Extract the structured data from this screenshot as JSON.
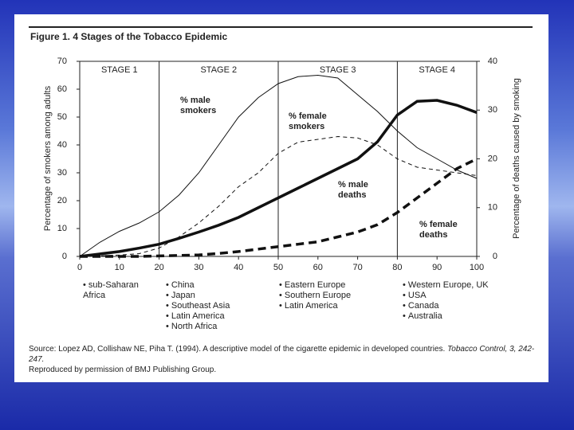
{
  "chart_data": {
    "type": "line",
    "title": "Figure 1. 4 Stages of the Tobacco Epidemic",
    "y_label": "Percentage of smokers among adults",
    "y2_label": "Percentage of deaths caused by smoking",
    "x": [
      0,
      5,
      10,
      15,
      20,
      25,
      30,
      35,
      40,
      45,
      50,
      55,
      60,
      65,
      70,
      75,
      80,
      85,
      90,
      95,
      100
    ],
    "xlim": [
      0,
      100
    ],
    "xticks": [
      0,
      10,
      20,
      30,
      40,
      50,
      60,
      70,
      80,
      90,
      100
    ],
    "ylim": [
      0,
      70
    ],
    "yticks": [
      0,
      10,
      20,
      30,
      40,
      50,
      60,
      70
    ],
    "y2lim": [
      0,
      40
    ],
    "y2ticks": [
      0,
      10,
      20,
      30,
      40
    ],
    "stages": [
      "STAGE 1",
      "STAGE 2",
      "STAGE 3",
      "STAGE 4"
    ],
    "stage_bounds": [
      20,
      50,
      80
    ],
    "series": [
      {
        "name": "% male smokers",
        "color": "#111111",
        "style": "solid",
        "width": 1,
        "values": [
          0,
          5,
          9,
          12,
          16,
          22,
          30,
          40,
          50,
          57,
          62,
          64.5,
          65,
          64,
          58,
          52,
          45,
          39,
          35,
          31,
          28
        ]
      },
      {
        "name": "% female smokers",
        "color": "#111111",
        "style": "dashed",
        "width": 1,
        "values": [
          0,
          0.2,
          0.5,
          1,
          3,
          7,
          12,
          18,
          25,
          30,
          37,
          41,
          42,
          43,
          42.5,
          40,
          35,
          32,
          31,
          30,
          29
        ]
      },
      {
        "name": "% male deaths",
        "color": "#111111",
        "style": "solid",
        "width": 3.5,
        "axis": "y2",
        "values": [
          0,
          0.5,
          1,
          1.7,
          2.5,
          3.7,
          5,
          6.4,
          8,
          10,
          12,
          14,
          16,
          18,
          20,
          23.5,
          29,
          31.8,
          32,
          31,
          29.5
        ]
      },
      {
        "name": "% female deaths",
        "color": "#111111",
        "style": "dashed",
        "width": 3.5,
        "axis": "y2",
        "values": [
          0,
          0,
          0,
          0,
          0.1,
          0.2,
          0.3,
          0.6,
          1,
          1.5,
          2,
          2.5,
          3,
          4,
          5,
          6.5,
          9,
          12,
          15,
          18,
          20
        ]
      }
    ],
    "regions": [
      [
        "sub-Saharan Africa"
      ],
      [
        "China",
        "Japan",
        "Southeast Asia",
        "Latin America",
        "North Africa"
      ],
      [
        "Eastern Europe",
        "Southern Europe",
        "Latin America"
      ],
      [
        "Western Europe, UK",
        "USA",
        "Canada",
        "Australia"
      ]
    ],
    "source": {
      "text": "Source: Lopez AD, Collishaw NE, Piha T. (1994). A descriptive model of the cigarette epidemic in developed countries.",
      "journal": "Tobacco Control,",
      "ref": "3, 242-247."
    },
    "permission": "Reproduced by permission of BMJ Publishing Group."
  }
}
